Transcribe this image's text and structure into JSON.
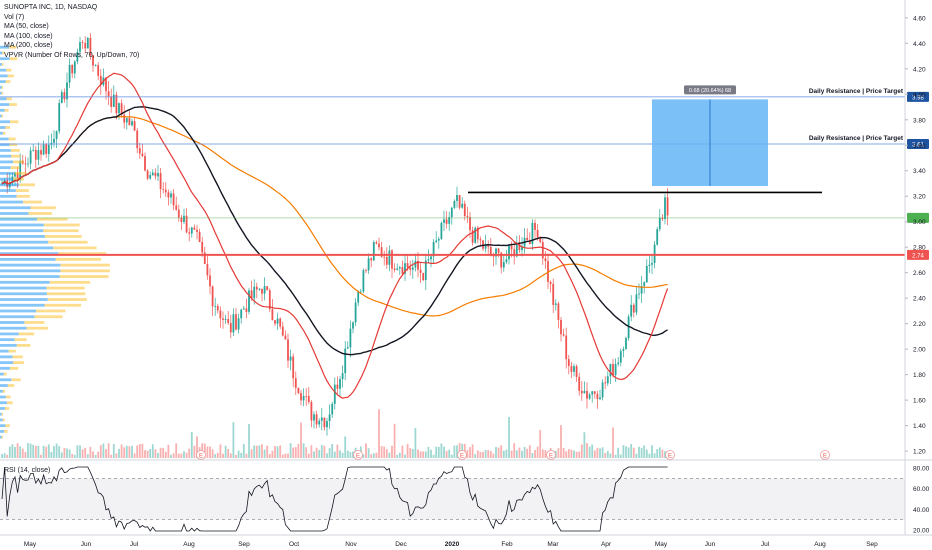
{
  "legend": {
    "title": "SUNOPTA INC, 1D, NASDAQ",
    "lines": [
      "Vol (7)",
      "MA (50, close)",
      "MA (100, close)",
      "MA (200, close)",
      "VPVR (Number Of Rows, 70, Up/Down, 70)"
    ]
  },
  "rsi_label": "RSI (14, close)",
  "colors": {
    "up": "#26a69a",
    "down": "#ef5350",
    "ma50": "#e53935",
    "ma100": "#131722",
    "ma200": "#f57c00",
    "resistance": "#5d8ee3",
    "target_box": "#64b5f6",
    "price_line": "#ef5350",
    "last_line": "#4caf50",
    "vpvr_up": "#2196f3",
    "vpvr_down": "#fbc02d"
  },
  "chart_data": [
    {
      "type": "candlestick",
      "title": "SUNOPTA INC, 1D, NASDAQ",
      "x_labels": [
        "May",
        "Jun",
        "Jul",
        "Aug",
        "Sep",
        "Oct",
        "Nov",
        "Dec",
        "2020",
        "Feb",
        "Mar",
        "Apr",
        "May",
        "Jun",
        "Jul",
        "Aug",
        "Sep"
      ],
      "y_ticks": [
        "4.60",
        "4.40",
        "4.20",
        "4.00",
        "3.80",
        "3.60",
        "3.40",
        "3.20",
        "3.00",
        "2.80",
        "2.60",
        "2.40",
        "2.20",
        "2.00",
        "1.80",
        "1.60",
        "1.40",
        "1.20"
      ],
      "ylim": [
        1.13,
        4.74
      ],
      "close_path": [
        [
          "May",
          3.3
        ],
        [
          "May",
          3.4
        ],
        [
          "May",
          3.55
        ],
        [
          "May",
          3.6
        ],
        [
          "May",
          4.1
        ],
        [
          "May",
          4.45
        ],
        [
          "Jun",
          4.15
        ],
        [
          "Jun",
          3.9
        ],
        [
          "Jun",
          3.75
        ],
        [
          "Jul",
          3.4
        ],
        [
          "Jul",
          3.25
        ],
        [
          "Jul",
          3.05
        ],
        [
          "Aug",
          2.85
        ],
        [
          "Aug",
          2.4
        ],
        [
          "Aug",
          2.15
        ],
        [
          "Sep",
          2.35
        ],
        [
          "Sep",
          2.5
        ],
        [
          "Sep",
          2.2
        ],
        [
          "Oct",
          1.8
        ],
        [
          "Oct",
          1.5
        ],
        [
          "Oct",
          1.45
        ],
        [
          "Nov",
          1.9
        ],
        [
          "Nov",
          2.5
        ],
        [
          "Nov",
          2.8
        ],
        [
          "Dec",
          2.7
        ],
        [
          "Dec",
          2.65
        ],
        [
          "Dec",
          2.6
        ],
        [
          "2020",
          2.9
        ],
        [
          "2020",
          3.15
        ],
        [
          "2020",
          2.9
        ],
        [
          "Feb",
          2.75
        ],
        [
          "Feb",
          2.7
        ],
        [
          "Feb",
          2.85
        ],
        [
          "Mar",
          2.95
        ],
        [
          "Mar",
          2.35
        ],
        [
          "Mar",
          1.85
        ],
        [
          "Apr",
          1.65
        ],
        [
          "Apr",
          1.7
        ],
        [
          "Apr",
          1.95
        ],
        [
          "Apr",
          2.4
        ],
        [
          "May",
          2.7
        ],
        [
          "May",
          3.2
        ]
      ],
      "moving_averages": [
        {
          "name": "MA (50, close)",
          "color": "#e53935"
        },
        {
          "name": "MA (100, close)",
          "color": "#131722"
        },
        {
          "name": "MA (200, close)",
          "color": "#f57c00"
        }
      ],
      "annotations": [
        {
          "text": "Daily Resistance | Price Target",
          "price": 3.98,
          "label": "3.98"
        },
        {
          "text": "Daily Resistance | Price Target",
          "price": 3.61,
          "label": "3.61"
        },
        {
          "text": "0.68 (20.64%) 68",
          "type": "price_range",
          "from": 3.28,
          "to": 3.96
        },
        {
          "type": "horizontal_line",
          "price": 3.23,
          "color": "#000000"
        },
        {
          "type": "horizontal_line",
          "price": 2.74,
          "color": "#ef5350",
          "label": "2.74"
        },
        {
          "type": "horizontal_line",
          "price": 3.03,
          "color": "#4caf50"
        }
      ],
      "earnings_markers": [
        "E",
        "E",
        "E",
        "E",
        "E",
        "E"
      ]
    },
    {
      "type": "line",
      "title": "RSI (14, close)",
      "y_ticks": [
        "80.00",
        "60.00",
        "40.00",
        "20.00"
      ],
      "ylim": [
        18,
        82
      ],
      "band": [
        30,
        70
      ]
    }
  ]
}
